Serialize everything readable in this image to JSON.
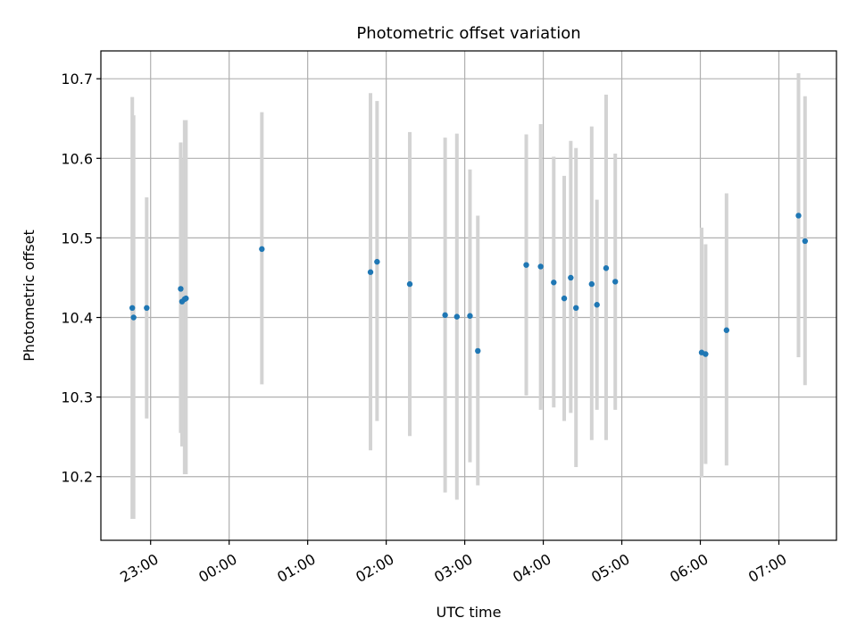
{
  "chart_data": {
    "type": "scatter",
    "title": "Photometric offset variation",
    "xlabel": "UTC time",
    "ylabel": "Photometric offset",
    "xlim": [
      "22:22",
      "07:44"
    ],
    "ylim": [
      10.12,
      10.735
    ],
    "x_ticks": [
      "23:00",
      "00:00",
      "01:00",
      "02:00",
      "03:00",
      "04:00",
      "05:00",
      "06:00",
      "07:00"
    ],
    "y_ticks": [
      "10.2",
      "10.3",
      "10.4",
      "10.5",
      "10.6",
      "10.7"
    ],
    "grid": true,
    "colors": {
      "points": "#1f77b4",
      "error_bars": "#d3d3d3",
      "grid": "#b0b0b0"
    },
    "points": [
      {
        "x": "22:46",
        "y": 10.412,
        "ylow": 10.147,
        "yhigh": 10.677
      },
      {
        "x": "22:47",
        "y": 10.4,
        "ylow": 10.147,
        "yhigh": 10.654
      },
      {
        "x": "22:57",
        "y": 10.412,
        "ylow": 10.273,
        "yhigh": 10.551
      },
      {
        "x": "23:23",
        "y": 10.436,
        "ylow": 10.255,
        "yhigh": 10.62
      },
      {
        "x": "23:24",
        "y": 10.42,
        "ylow": 10.238,
        "yhigh": 10.599
      },
      {
        "x": "23:26",
        "y": 10.423,
        "ylow": 10.203,
        "yhigh": 10.648
      },
      {
        "x": "23:27",
        "y": 10.424,
        "ylow": 10.203,
        "yhigh": 10.648
      },
      {
        "x": "00:25",
        "y": 10.486,
        "ylow": 10.316,
        "yhigh": 10.658
      },
      {
        "x": "01:48",
        "y": 10.457,
        "ylow": 10.233,
        "yhigh": 10.682
      },
      {
        "x": "01:53",
        "y": 10.47,
        "ylow": 10.27,
        "yhigh": 10.672
      },
      {
        "x": "02:18",
        "y": 10.442,
        "ylow": 10.251,
        "yhigh": 10.633
      },
      {
        "x": "02:45",
        "y": 10.403,
        "ylow": 10.18,
        "yhigh": 10.626
      },
      {
        "x": "02:54",
        "y": 10.401,
        "ylow": 10.171,
        "yhigh": 10.631
      },
      {
        "x": "03:04",
        "y": 10.402,
        "ylow": 10.218,
        "yhigh": 10.586
      },
      {
        "x": "03:10",
        "y": 10.358,
        "ylow": 10.189,
        "yhigh": 10.528
      },
      {
        "x": "03:47",
        "y": 10.466,
        "ylow": 10.302,
        "yhigh": 10.63
      },
      {
        "x": "03:58",
        "y": 10.464,
        "ylow": 10.284,
        "yhigh": 10.643
      },
      {
        "x": "04:08",
        "y": 10.444,
        "ylow": 10.287,
        "yhigh": 10.602
      },
      {
        "x": "04:16",
        "y": 10.424,
        "ylow": 10.27,
        "yhigh": 10.578
      },
      {
        "x": "04:21",
        "y": 10.45,
        "ylow": 10.28,
        "yhigh": 10.622
      },
      {
        "x": "04:25",
        "y": 10.412,
        "ylow": 10.212,
        "yhigh": 10.613
      },
      {
        "x": "04:37",
        "y": 10.442,
        "ylow": 10.246,
        "yhigh": 10.64
      },
      {
        "x": "04:41",
        "y": 10.416,
        "ylow": 10.284,
        "yhigh": 10.548
      },
      {
        "x": "04:48",
        "y": 10.462,
        "ylow": 10.246,
        "yhigh": 10.68
      },
      {
        "x": "04:55",
        "y": 10.445,
        "ylow": 10.284,
        "yhigh": 10.606
      },
      {
        "x": "06:01",
        "y": 10.356,
        "ylow": 10.199,
        "yhigh": 10.513
      },
      {
        "x": "06:04",
        "y": 10.354,
        "ylow": 10.216,
        "yhigh": 10.492
      },
      {
        "x": "06:20",
        "y": 10.384,
        "ylow": 10.214,
        "yhigh": 10.556
      },
      {
        "x": "07:15",
        "y": 10.528,
        "ylow": 10.35,
        "yhigh": 10.707
      },
      {
        "x": "07:20",
        "y": 10.496,
        "ylow": 10.315,
        "yhigh": 10.678
      }
    ]
  }
}
